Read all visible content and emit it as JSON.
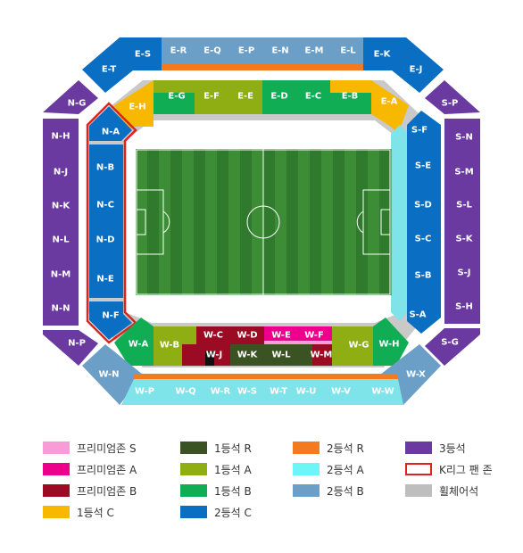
{
  "colors": {
    "purple": "#6a3aa0",
    "blue2": "#0a6fc2",
    "steel": "#6b9fc7",
    "cyan": "#7fe3ea",
    "orange": "#f47a20",
    "gold": "#f9b800",
    "olive": "#8fae14",
    "green": "#11ad55",
    "dark": "#3b5323",
    "maroon": "#9b0b23",
    "pink": "#f04ca0",
    "grey": "#bebebe",
    "kleague": "#e0221b",
    "pitch": "#3b8c35"
  },
  "sections": [
    {
      "label": "E-S"
    },
    {
      "label": "E-R"
    },
    {
      "label": "E-Q"
    },
    {
      "label": "E-P"
    },
    {
      "label": "E-N"
    },
    {
      "label": "E-M"
    },
    {
      "label": "E-L"
    },
    {
      "label": "E-K"
    },
    {
      "label": "E-T"
    },
    {
      "label": "E-J"
    },
    {
      "label": "N-G"
    },
    {
      "label": "N-H"
    },
    {
      "label": "N-J"
    },
    {
      "label": "N-K"
    },
    {
      "label": "N-L"
    },
    {
      "label": "N-M"
    },
    {
      "label": "N-N"
    },
    {
      "label": "N-P"
    },
    {
      "label": "S-P"
    },
    {
      "label": "S-N"
    },
    {
      "label": "S-M"
    },
    {
      "label": "S-L"
    },
    {
      "label": "S-K"
    },
    {
      "label": "S-J"
    },
    {
      "label": "S-H"
    },
    {
      "label": "S-G"
    },
    {
      "label": "E-H"
    },
    {
      "label": "E-G"
    },
    {
      "label": "E-F"
    },
    {
      "label": "E-E"
    },
    {
      "label": "E-D"
    },
    {
      "label": "E-C"
    },
    {
      "label": "E-B"
    },
    {
      "label": "E-A"
    },
    {
      "label": "N-A"
    },
    {
      "label": "N-B"
    },
    {
      "label": "N-C"
    },
    {
      "label": "N-D"
    },
    {
      "label": "N-E"
    },
    {
      "label": "N-F"
    },
    {
      "label": "S-F"
    },
    {
      "label": "S-E"
    },
    {
      "label": "S-D"
    },
    {
      "label": "S-C"
    },
    {
      "label": "S-B"
    },
    {
      "label": "S-A"
    },
    {
      "label": "W-A"
    },
    {
      "label": "W-B"
    },
    {
      "label": "W-C"
    },
    {
      "label": "W-D"
    },
    {
      "label": "W-E"
    },
    {
      "label": "W-F"
    },
    {
      "label": "W-G"
    },
    {
      "label": "W-H"
    },
    {
      "label": "W-J"
    },
    {
      "label": "W-K"
    },
    {
      "label": "W-L"
    },
    {
      "label": "W-M"
    },
    {
      "label": "W-N"
    },
    {
      "label": "W-X"
    },
    {
      "label": "W-P"
    },
    {
      "label": "W-Q"
    },
    {
      "label": "W-R"
    },
    {
      "label": "W-S"
    },
    {
      "label": "W-T"
    },
    {
      "label": "W-U"
    },
    {
      "label": "W-V"
    },
    {
      "label": "W-W"
    }
  ],
  "legend": [
    {
      "label": "프리미엄존 S",
      "color": "#f99bd6"
    },
    {
      "label": "1등석 R",
      "color": "#3b5323"
    },
    {
      "label": "2등석 R",
      "color": "#f47a20"
    },
    {
      "label": "3등석",
      "color": "#6a3aa0"
    },
    {
      "label": "프리미엄존 A",
      "color": "#ec008c"
    },
    {
      "label": "1등석 A",
      "color": "#8fae14"
    },
    {
      "label": "2등석 A",
      "color": "#6ef6f6"
    },
    {
      "label": "K리그 팬 존",
      "color": "#e0221b",
      "outline": true
    },
    {
      "label": "프리미엄존 B",
      "color": "#9b0b23"
    },
    {
      "label": "1등석 B",
      "color": "#11ad55"
    },
    {
      "label": "2등석 B",
      "color": "#6b9fc7"
    },
    {
      "label": "휠체어석",
      "color": "#bebebe"
    },
    {
      "label": "1등석 C",
      "color": "#f9b800"
    },
    {
      "label": "2등석 C",
      "color": "#0a6fc2"
    }
  ]
}
